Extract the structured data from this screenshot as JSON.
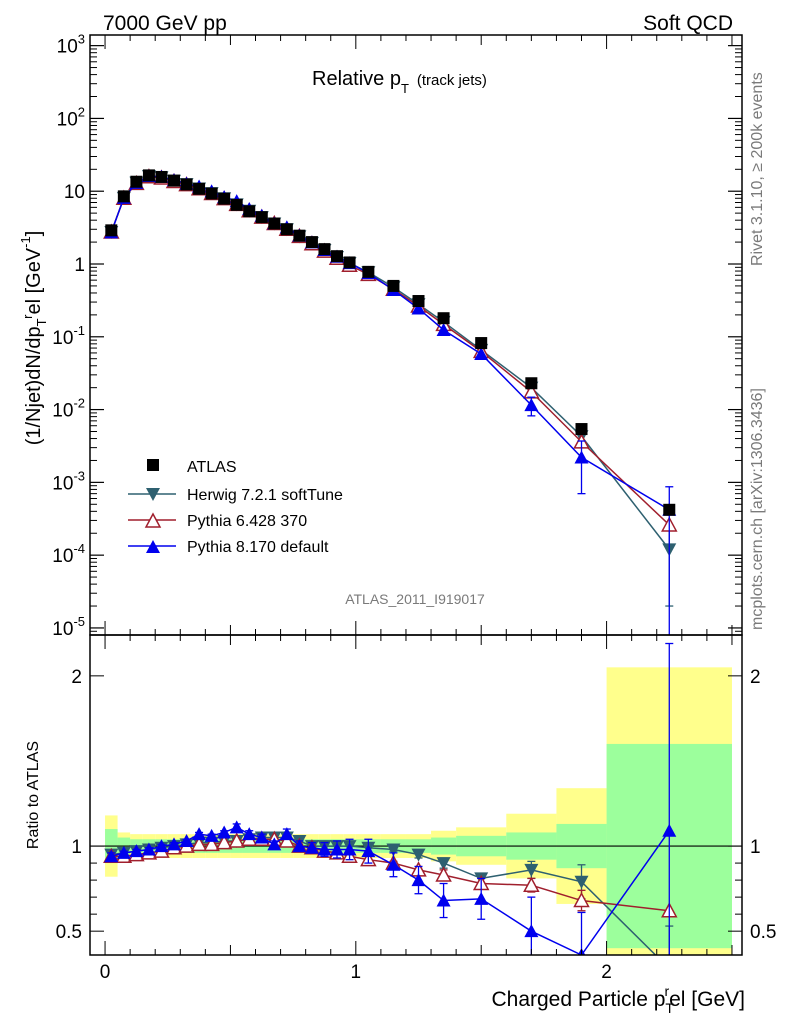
{
  "header": {
    "left": "7000 GeV pp",
    "right": "Soft QCD"
  },
  "side_labels": {
    "rivet": "Rivet 3.1.10, ≥ 200k events",
    "mcplots": "mcplots.cern.ch [arXiv:1306.3436]"
  },
  "chart_data": [
    {
      "type": "scatter",
      "panel": "main",
      "title_main": "Relative p",
      "title_sub": "T",
      "title_tail": "(track jets)",
      "ylabel": "(1/Njet)dN/dp_T^rel [GeV^-1]",
      "yscale": "log",
      "ylim": [
        8e-06,
        1400
      ],
      "xlim": [
        -0.06,
        2.54
      ],
      "y_ticks": [
        "10^-5",
        "10^-4",
        "10^-3",
        "10^-2",
        "10^-1",
        "1",
        "10",
        "10^2",
        "10^3"
      ],
      "watermark": "ATLAS_2011_I919017",
      "legend_position": "middle-left",
      "series": [
        {
          "name": "ATLAS",
          "color": "#000000",
          "marker": "square",
          "x": [
            0.025,
            0.075,
            0.125,
            0.175,
            0.225,
            0.275,
            0.325,
            0.375,
            0.425,
            0.475,
            0.525,
            0.575,
            0.625,
            0.675,
            0.725,
            0.775,
            0.825,
            0.875,
            0.925,
            0.975,
            1.05,
            1.15,
            1.25,
            1.35,
            1.5,
            1.7,
            1.9,
            2.25
          ],
          "values": [
            2.9,
            8.5,
            13.5,
            16.5,
            15.7,
            14.0,
            12.4,
            10.8,
            9.3,
            7.9,
            6.5,
            5.3,
            4.4,
            3.6,
            3.0,
            2.45,
            2.0,
            1.6,
            1.28,
            1.05,
            0.78,
            0.5,
            0.31,
            0.18,
            0.082,
            0.023,
            0.0054,
            0.00042
          ]
        },
        {
          "name": "Herwig 7.2.1 softTune",
          "color": "#2e6070",
          "marker": "triangle-down",
          "x": [
            0.025,
            0.075,
            0.125,
            0.175,
            0.225,
            0.275,
            0.325,
            0.375,
            0.425,
            0.475,
            0.525,
            0.575,
            0.625,
            0.675,
            0.725,
            0.775,
            0.825,
            0.875,
            0.925,
            0.975,
            1.05,
            1.15,
            1.25,
            1.35,
            1.5,
            1.7,
            1.9,
            2.25
          ],
          "values": [
            2.75,
            8.1,
            13.1,
            16.2,
            15.5,
            13.9,
            12.5,
            10.9,
            9.4,
            8.0,
            6.6,
            5.4,
            4.4,
            3.6,
            3.0,
            2.4,
            1.95,
            1.56,
            1.25,
            1.03,
            0.77,
            0.48,
            0.28,
            0.16,
            0.066,
            0.02,
            0.0043,
            0.00012
          ],
          "errors": [
            0,
            0,
            0,
            0,
            0,
            0,
            0,
            0,
            0,
            0,
            0,
            0,
            0,
            0,
            0,
            0,
            0,
            0,
            0,
            0,
            0,
            0,
            0,
            0,
            0,
            0,
            0,
            0.0001
          ]
        },
        {
          "name": "Pythia 6.428 370",
          "color": "#a01f2d",
          "marker": "triangle-up-open",
          "x": [
            0.025,
            0.075,
            0.125,
            0.175,
            0.225,
            0.275,
            0.325,
            0.375,
            0.425,
            0.475,
            0.525,
            0.575,
            0.625,
            0.675,
            0.725,
            0.775,
            0.825,
            0.875,
            0.925,
            0.975,
            1.05,
            1.15,
            1.25,
            1.35,
            1.5,
            1.7,
            1.9,
            2.25
          ],
          "values": [
            2.75,
            8.0,
            12.8,
            15.8,
            15.2,
            13.6,
            12.3,
            10.8,
            9.3,
            7.9,
            6.6,
            5.4,
            4.4,
            3.6,
            3.0,
            2.4,
            1.9,
            1.5,
            1.2,
            0.96,
            0.72,
            0.45,
            0.265,
            0.148,
            0.063,
            0.0175,
            0.0036,
            0.00026
          ]
        },
        {
          "name": "Pythia 8.170 default",
          "color": "#0000ee",
          "marker": "triangle-up",
          "x": [
            0.025,
            0.075,
            0.125,
            0.175,
            0.225,
            0.275,
            0.325,
            0.375,
            0.425,
            0.475,
            0.525,
            0.575,
            0.625,
            0.675,
            0.725,
            0.775,
            0.825,
            0.875,
            0.925,
            0.975,
            1.05,
            1.15,
            1.25,
            1.35,
            1.5,
            1.7,
            1.9,
            2.25
          ],
          "values": [
            2.72,
            8.1,
            13.0,
            16.2,
            15.8,
            14.2,
            12.7,
            11.6,
            10.0,
            8.3,
            7.3,
            5.7,
            4.6,
            3.6,
            3.2,
            2.45,
            1.98,
            1.56,
            1.26,
            1.03,
            0.75,
            0.44,
            0.245,
            0.124,
            0.058,
            0.0115,
            0.0022,
            0.00042
          ],
          "errors": [
            0,
            0,
            0,
            0,
            0,
            0,
            0,
            0,
            0,
            0,
            0,
            0,
            0,
            0,
            0,
            0,
            0,
            0,
            0,
            0,
            0,
            0,
            0,
            0,
            0,
            0.0033,
            0.0015,
            0.00045
          ]
        }
      ]
    },
    {
      "type": "scatter",
      "panel": "ratio",
      "ylabel": "Ratio to ATLAS",
      "xlabel": "Charged Particle p_T^rel [GeV]",
      "ylim": [
        0.36,
        2.24
      ],
      "xlim": [
        -0.06,
        2.54
      ],
      "y_ticks": [
        "0.5",
        "1",
        "2"
      ],
      "x_ticks": [
        "0",
        "1",
        "2"
      ],
      "bands": {
        "x_edges": [
          0,
          0.05,
          0.1,
          0.15,
          0.2,
          0.25,
          0.3,
          0.35,
          0.4,
          0.45,
          0.5,
          0.55,
          0.6,
          0.65,
          0.7,
          0.75,
          0.8,
          0.85,
          0.9,
          0.95,
          1.0,
          1.1,
          1.2,
          1.3,
          1.4,
          1.6,
          1.8,
          2.0,
          2.5
        ],
        "inner": [
          0.1,
          0.05,
          0.04,
          0.04,
          0.04,
          0.04,
          0.04,
          0.04,
          0.04,
          0.04,
          0.04,
          0.04,
          0.04,
          0.04,
          0.04,
          0.04,
          0.04,
          0.04,
          0.04,
          0.04,
          0.04,
          0.04,
          0.04,
          0.05,
          0.06,
          0.08,
          0.13,
          0.6
        ],
        "outer": [
          0.18,
          0.08,
          0.07,
          0.07,
          0.07,
          0.07,
          0.07,
          0.07,
          0.07,
          0.07,
          0.07,
          0.07,
          0.07,
          0.07,
          0.07,
          0.07,
          0.07,
          0.07,
          0.07,
          0.07,
          0.07,
          0.07,
          0.07,
          0.09,
          0.11,
          0.19,
          0.34,
          1.05
        ]
      },
      "series": [
        {
          "name": "Herwig 7.2.1 softTune",
          "color": "#2e6070",
          "marker": "triangle-down",
          "x": [
            0.025,
            0.075,
            0.125,
            0.175,
            0.225,
            0.275,
            0.325,
            0.375,
            0.425,
            0.475,
            0.525,
            0.575,
            0.625,
            0.675,
            0.725,
            0.775,
            0.825,
            0.875,
            0.925,
            0.975,
            1.05,
            1.15,
            1.25,
            1.35,
            1.5,
            1.7,
            1.9,
            2.25
          ],
          "values": [
            0.95,
            0.96,
            0.97,
            0.98,
            0.99,
            1.0,
            1.01,
            1.02,
            1.02,
            1.03,
            1.03,
            1.04,
            1.05,
            1.05,
            1.05,
            1.03,
            1.0,
            1.0,
            1.0,
            1.0,
            0.99,
            0.98,
            0.95,
            0.9,
            0.81,
            0.86,
            0.79,
            0.28
          ],
          "errors": [
            0,
            0,
            0,
            0,
            0,
            0,
            0,
            0,
            0,
            0,
            0,
            0,
            0,
            0,
            0,
            0,
            0,
            0,
            0,
            0,
            0,
            0.01,
            0.02,
            0.03,
            0.03,
            0.05,
            0.1,
            0.25
          ]
        },
        {
          "name": "Pythia 6.428 370",
          "color": "#a01f2d",
          "marker": "triangle-up-open",
          "x": [
            0.025,
            0.075,
            0.125,
            0.175,
            0.225,
            0.275,
            0.325,
            0.375,
            0.425,
            0.475,
            0.525,
            0.575,
            0.625,
            0.675,
            0.725,
            0.775,
            0.825,
            0.875,
            0.925,
            0.975,
            1.05,
            1.15,
            1.25,
            1.35,
            1.5,
            1.7,
            1.9,
            2.25
          ],
          "values": [
            0.94,
            0.94,
            0.95,
            0.96,
            0.97,
            0.99,
            1.0,
            1.01,
            1.01,
            1.02,
            1.03,
            1.04,
            1.04,
            1.04,
            1.03,
            1.0,
            0.99,
            0.97,
            0.96,
            0.94,
            0.92,
            0.9,
            0.86,
            0.83,
            0.78,
            0.77,
            0.68,
            0.62
          ],
          "errors": [
            0,
            0,
            0,
            0,
            0,
            0,
            0,
            0,
            0,
            0,
            0,
            0,
            0,
            0,
            0,
            0,
            0,
            0,
            0,
            0,
            0,
            0.01,
            0.02,
            0.03,
            0.03,
            0.04,
            0.06,
            0
          ]
        },
        {
          "name": "Pythia 8.170 default",
          "color": "#0000ee",
          "marker": "triangle-up",
          "x": [
            0.025,
            0.075,
            0.125,
            0.175,
            0.225,
            0.275,
            0.325,
            0.375,
            0.425,
            0.475,
            0.525,
            0.575,
            0.625,
            0.675,
            0.725,
            0.775,
            0.825,
            0.875,
            0.925,
            0.975,
            1.05,
            1.15,
            1.25,
            1.35,
            1.5,
            1.7,
            1.9,
            2.25
          ],
          "values": [
            0.94,
            0.96,
            0.97,
            0.98,
            1.0,
            1.01,
            1.03,
            1.07,
            1.06,
            1.08,
            1.11,
            1.07,
            1.05,
            1.01,
            1.07,
            1.0,
            0.99,
            0.98,
            0.98,
            0.98,
            0.97,
            0.89,
            0.8,
            0.68,
            0.69,
            0.5,
            0.36,
            1.09
          ],
          "errors": [
            0.02,
            0.01,
            0.01,
            0.01,
            0.01,
            0.01,
            0.01,
            0.01,
            0.01,
            0.01,
            0.02,
            0.02,
            0.02,
            0.02,
            0.03,
            0.03,
            0.03,
            0.04,
            0.05,
            0.06,
            0.07,
            0.07,
            0.08,
            0.1,
            0.12,
            0.2,
            0.25,
            1.1
          ]
        }
      ]
    }
  ]
}
